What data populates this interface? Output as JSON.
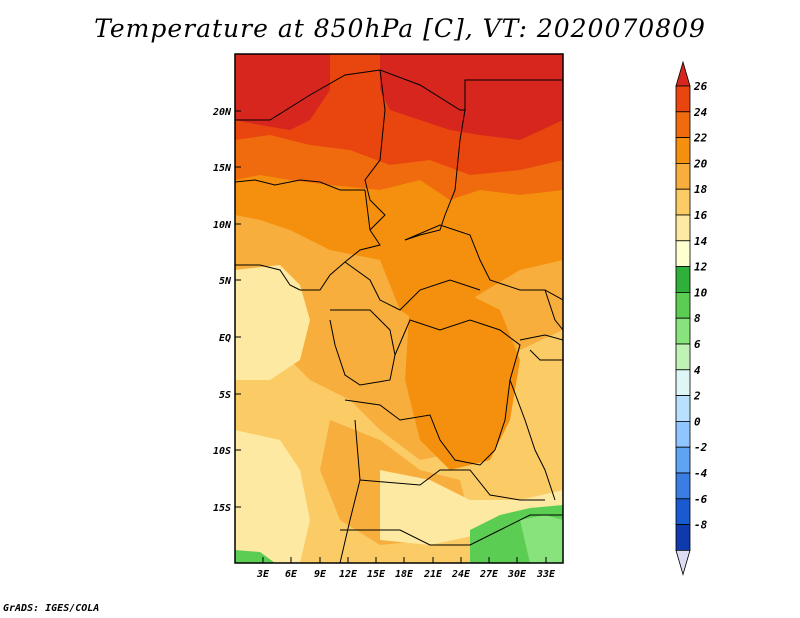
{
  "title": "Temperature at 850hPa [C], VT: 2020070809",
  "credit": "GrADS: IGES/COLA",
  "map": {
    "lat_labels": [
      "20N",
      "15N",
      "10N",
      "5N",
      "EQ",
      "5S",
      "10S",
      "15S"
    ],
    "lon_labels": [
      "3E",
      "6E",
      "9E",
      "12E",
      "15E",
      "18E",
      "21E",
      "24E",
      "27E",
      "30E",
      "33E"
    ]
  },
  "colorbar": {
    "labels": [
      "26",
      "24",
      "22",
      "20",
      "18",
      "16",
      "14",
      "12",
      "10",
      "8",
      "6",
      "4",
      "2",
      "0",
      "-2",
      "-4",
      "-6",
      "-8"
    ],
    "colors": [
      "#d7261e",
      "#e8450f",
      "#f06a0e",
      "#f5900f",
      "#f7ae3c",
      "#fbcc66",
      "#fde9a1",
      "#ffffcf",
      "#2fb03a",
      "#5acd52",
      "#89e37c",
      "#bff3b6",
      "#dff6f6",
      "#b8e1ff",
      "#8fc6ff",
      "#5ea4f3",
      "#3a7ee3",
      "#1a5ad0",
      "#0e3aae",
      "#062091"
    ]
  }
}
